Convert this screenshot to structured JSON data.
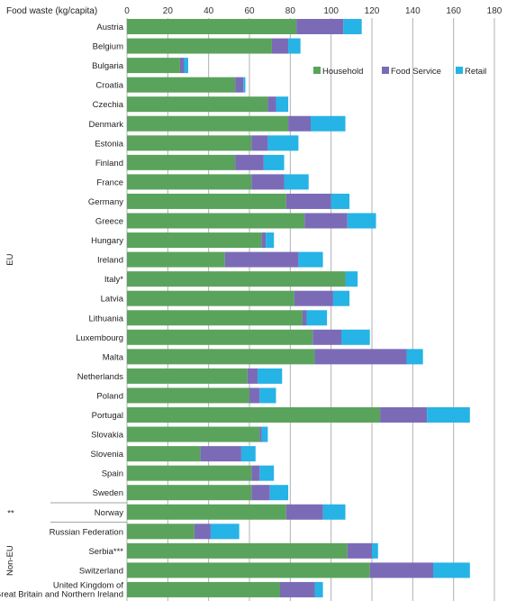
{
  "chart_data": {
    "type": "bar",
    "orientation": "horizontal",
    "stacked": true,
    "title": "",
    "xlabel": "Food waste (kg/capita)",
    "ylabel": "",
    "xlim": [
      0,
      180
    ],
    "xticks": [
      0,
      20,
      40,
      60,
      80,
      100,
      120,
      140,
      160,
      180
    ],
    "grid": true,
    "legend_position": "top-right",
    "categories": [
      "Austria",
      "Belgium",
      "Bulgaria",
      "Croatia",
      "Czechia",
      "Denmark",
      "Estonia",
      "Finland",
      "France",
      "Germany",
      "Greece",
      "Hungary",
      "Ireland",
      "Italy*",
      "Latvia",
      "Lithuania",
      "Luxembourg",
      "Malta",
      "Netherlands",
      "Poland",
      "Portugal",
      "Slovakia",
      "Slovenia",
      "Spain",
      "Sweden",
      "Norway",
      "Russian Federation",
      "Serbia***",
      "Switzerland",
      "United Kingdom of Great Britain and Northern Ireland"
    ],
    "series": [
      {
        "name": "Household",
        "color": "#5aa35c",
        "values": [
          83,
          71,
          26,
          53,
          69,
          79,
          61,
          53,
          61,
          78,
          87,
          66,
          48,
          107,
          82,
          86,
          91,
          92,
          59,
          60,
          124,
          65,
          36,
          61,
          61,
          78,
          33,
          108,
          119,
          75
        ]
      },
      {
        "name": "Food Service",
        "color": "#7b6bb7",
        "values": [
          23,
          8,
          2,
          4,
          4,
          11,
          8,
          14,
          16,
          22,
          21,
          2,
          36,
          0,
          19,
          2,
          14,
          45,
          5,
          5,
          23,
          1,
          20,
          4,
          9,
          18,
          8,
          12,
          31,
          17
        ]
      },
      {
        "name": "Retail",
        "color": "#26b3e5",
        "values": [
          9,
          6,
          2,
          1,
          6,
          17,
          15,
          10,
          12,
          9,
          14,
          4,
          12,
          6,
          8,
          10,
          14,
          8,
          12,
          8,
          21,
          3,
          7,
          7,
          9,
          11,
          14,
          3,
          18,
          4
        ]
      }
    ],
    "groups": [
      {
        "label": "EU",
        "start": 0,
        "end": 24
      },
      {
        "label": "**",
        "start": 25,
        "end": 25
      },
      {
        "label": "Non-EU",
        "start": 26,
        "end": 29
      }
    ]
  },
  "legend": [
    {
      "label": "Household",
      "color": "#5aa35c"
    },
    {
      "label": "Food Service",
      "color": "#7b6bb7"
    },
    {
      "label": "Retail",
      "color": "#26b3e5"
    }
  ]
}
